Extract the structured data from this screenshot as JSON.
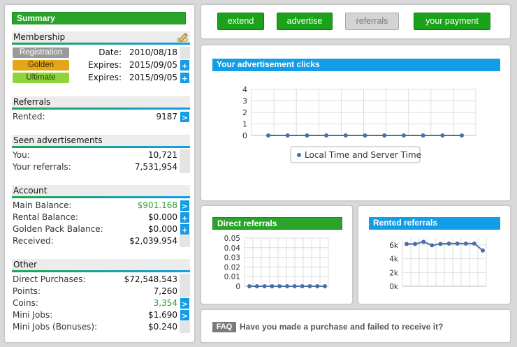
{
  "summary": {
    "title": "Summary",
    "membership": {
      "heading": "Membership",
      "items": [
        {
          "badge": "Registration",
          "label": "Date:",
          "value": "2010/08/18",
          "action": ""
        },
        {
          "badge": "Golden",
          "label": "Expires:",
          "value": "2015/09/05",
          "action": "+"
        },
        {
          "badge": "Ultimate",
          "label": "Expires:",
          "value": "2015/09/05",
          "action": "+"
        }
      ]
    },
    "referrals": {
      "heading": "Referrals",
      "rows": [
        {
          "label": "Rented:",
          "value": "9187",
          "action": ">"
        }
      ]
    },
    "seen": {
      "heading": "Seen advertisements",
      "rows": [
        {
          "label": "You:",
          "value": "10,721"
        },
        {
          "label": "Your referrals:",
          "value": "7,531,954"
        }
      ]
    },
    "account": {
      "heading": "Account",
      "rows": [
        {
          "label": "Main Balance:",
          "value": "$901.168",
          "action": ">"
        },
        {
          "label": "Rental Balance:",
          "value": "$0.000",
          "action": "+"
        },
        {
          "label": "Golden Pack Balance:",
          "value": "$0.000",
          "action": "+"
        },
        {
          "label": "Received:",
          "value": "$2,039.954",
          "action": ""
        }
      ]
    },
    "other": {
      "heading": "Other",
      "rows": [
        {
          "label": "Direct Purchases:",
          "value": "$72,548.543",
          "action": ""
        },
        {
          "label": "Points:",
          "value": "7,260",
          "action": ""
        },
        {
          "label": "Coins:",
          "value": "3,354",
          "action": ">"
        },
        {
          "label": "Mini Jobs:",
          "value": "$1.690",
          "action": ">"
        },
        {
          "label": "Mini Jobs (Bonuses):",
          "value": "$0.240",
          "action": ""
        }
      ]
    }
  },
  "topbar": {
    "buttons": [
      {
        "label": "extend",
        "enabled": true
      },
      {
        "label": "advertise",
        "enabled": true
      },
      {
        "label": "referrals",
        "enabled": false
      },
      {
        "label": "your payment",
        "enabled": true
      }
    ]
  },
  "ad_clicks": {
    "title": "Your advertisement clicks",
    "legend": "Local Time and Server Time"
  },
  "direct_referrals": {
    "title": "Direct referrals"
  },
  "rented_referrals": {
    "title": "Rented referrals"
  },
  "faq": {
    "badge": "FAQ",
    "text": "Have you made a purchase and failed to receive it?"
  },
  "colors": {
    "green": "#1aa21a",
    "blue": "#129de6",
    "series": "#4a6fa5"
  },
  "icons": {
    "membership": "edit-pencil-icon"
  },
  "chart_data": [
    {
      "type": "line",
      "title": "Your advertisement clicks",
      "yticks": [
        0,
        1,
        2,
        3,
        4
      ],
      "ylim": [
        0,
        4
      ],
      "series": [
        {
          "name": "Local Time and Server Time",
          "values": [
            0,
            0,
            0,
            0,
            0,
            0,
            0,
            0,
            0,
            0,
            0
          ]
        }
      ],
      "grid": true,
      "legend": "bottom"
    },
    {
      "type": "line",
      "title": "Direct referrals",
      "yticks": [
        "0",
        "0.01",
        "0.02",
        "0.03",
        "0.04",
        "0.05"
      ],
      "ylim": [
        0,
        0.05
      ],
      "series": [
        {
          "values": [
            0,
            0,
            0,
            0,
            0,
            0,
            0,
            0,
            0,
            0,
            0
          ]
        }
      ],
      "grid": true
    },
    {
      "type": "line",
      "title": "Rented referrals",
      "yticks": [
        "0k",
        "2k",
        "4k",
        "6k"
      ],
      "ylim": [
        0,
        7000
      ],
      "series": [
        {
          "values": [
            6150,
            6150,
            6450,
            5950,
            6150,
            6200,
            6200,
            6200,
            6200,
            5200
          ]
        }
      ],
      "grid": true
    }
  ]
}
